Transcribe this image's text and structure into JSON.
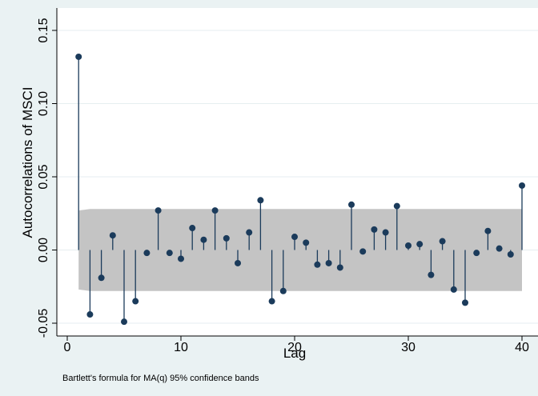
{
  "chart_data": {
    "type": "bar",
    "style": "stem",
    "x": [
      1,
      2,
      3,
      4,
      5,
      6,
      7,
      8,
      9,
      10,
      11,
      12,
      13,
      14,
      15,
      16,
      17,
      18,
      19,
      20,
      21,
      22,
      23,
      24,
      25,
      26,
      27,
      28,
      29,
      30,
      31,
      32,
      33,
      34,
      35,
      36,
      37,
      38,
      39,
      40
    ],
    "values": [
      0.132,
      -0.044,
      -0.019,
      0.01,
      -0.049,
      -0.035,
      -0.002,
      0.027,
      -0.002,
      -0.006,
      0.015,
      0.007,
      0.027,
      0.008,
      -0.009,
      0.012,
      0.034,
      -0.035,
      -0.028,
      0.009,
      0.005,
      -0.01,
      -0.009,
      -0.012,
      0.031,
      -0.001,
      0.014,
      0.012,
      0.03,
      0.003,
      0.004,
      -0.017,
      0.006,
      -0.027,
      -0.036,
      -0.002,
      0.013,
      0.001,
      -0.003,
      0.044
    ],
    "confidence_band": {
      "lower": [
        -0.027,
        -0.028,
        -0.028,
        -0.028,
        -0.028,
        -0.028,
        -0.028,
        -0.028,
        -0.028,
        -0.028,
        -0.028,
        -0.028,
        -0.028,
        -0.028,
        -0.028,
        -0.028,
        -0.028,
        -0.028,
        -0.028,
        -0.028,
        -0.028,
        -0.028,
        -0.028,
        -0.028,
        -0.028,
        -0.028,
        -0.028,
        -0.028,
        -0.028,
        -0.028,
        -0.028,
        -0.028,
        -0.028,
        -0.028,
        -0.028,
        -0.028,
        -0.028,
        -0.028,
        -0.028,
        -0.028
      ],
      "upper": [
        0.027,
        0.028,
        0.028,
        0.028,
        0.028,
        0.028,
        0.028,
        0.028,
        0.028,
        0.028,
        0.028,
        0.028,
        0.028,
        0.028,
        0.028,
        0.028,
        0.028,
        0.028,
        0.028,
        0.028,
        0.028,
        0.028,
        0.028,
        0.028,
        0.028,
        0.028,
        0.028,
        0.028,
        0.028,
        0.028,
        0.028,
        0.028,
        0.028,
        0.028,
        0.028,
        0.028,
        0.028,
        0.028,
        0.028,
        0.028
      ]
    },
    "xlabel": "Lag",
    "ylabel": "Autocorrelations of MSCI",
    "note": "Bartlett's formula for MA(q) 95% confidence bands",
    "xlim": [
      0,
      40
    ],
    "ylim": [
      -0.05,
      0.15
    ],
    "xticks": [
      0,
      10,
      20,
      30,
      40
    ],
    "xtick_labels": [
      "0",
      "10",
      "20",
      "30",
      "40"
    ],
    "yticks": [
      -0.05,
      0,
      0.05,
      0.1,
      0.15
    ],
    "ytick_labels": [
      "-0.05",
      "0.00",
      "0.05",
      "0.10",
      "0.15"
    ],
    "grid": true,
    "legend": "none"
  },
  "colors": {
    "background": "#eaf2f3",
    "plot_background": "#ffffff",
    "band": "#c4c4c4",
    "stem": "#1b3b5b",
    "grid": "#e6eef0"
  }
}
